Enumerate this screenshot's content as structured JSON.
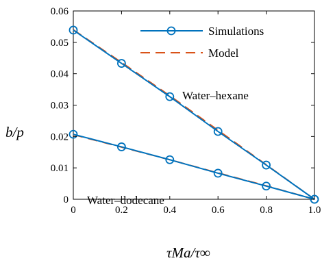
{
  "chart_data": {
    "type": "line",
    "title": "",
    "xlabel": "τMa/τ∞",
    "ylabel": "b/p",
    "xlim": [
      0,
      1
    ],
    "ylim": [
      0,
      0.06
    ],
    "x_ticks": [
      "0",
      "0.2",
      "0.4",
      "0.6",
      "0.8",
      "1.0"
    ],
    "y_ticks": [
      "0",
      "0.01",
      "0.02",
      "0.03",
      "0.04",
      "0.05",
      "0.06"
    ],
    "grid": false,
    "legend_position": "top-right",
    "legend": [
      {
        "label": "Simulations",
        "color": "#0072BD",
        "style": "solid",
        "marker": "circle"
      },
      {
        "label": "Model",
        "color": "#D95319",
        "style": "dashed",
        "marker": "none"
      }
    ],
    "annotations": [
      "Water–hexane",
      "Water–dodecane"
    ],
    "series": [
      {
        "name": "Water–hexane Simulations",
        "type": "simulation",
        "x": [
          0,
          0.2,
          0.4,
          0.6,
          0.8,
          1.0
        ],
        "y": [
          0.0539,
          0.0433,
          0.0327,
          0.0216,
          0.0109,
          0.0
        ]
      },
      {
        "name": "Water–hexane Model",
        "type": "model",
        "x": [
          0,
          0.2,
          0.4,
          0.6,
          0.8,
          1.0
        ],
        "y": [
          0.054,
          0.0436,
          0.033,
          0.022,
          0.011,
          0.0
        ]
      },
      {
        "name": "Water–dodecane Simulations",
        "type": "simulation",
        "x": [
          0,
          0.2,
          0.4,
          0.6,
          0.8,
          1.0
        ],
        "y": [
          0.0207,
          0.0167,
          0.0126,
          0.0083,
          0.0042,
          0.0
        ]
      },
      {
        "name": "Water–dodecane Model",
        "type": "model",
        "x": [
          0,
          0.2,
          0.4,
          0.6,
          0.8,
          1.0
        ],
        "y": [
          0.0206,
          0.0166,
          0.0126,
          0.0084,
          0.0043,
          0.0
        ]
      }
    ]
  }
}
